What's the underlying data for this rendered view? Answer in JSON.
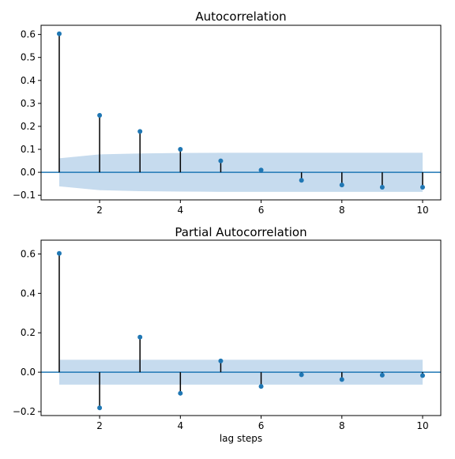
{
  "figure": {
    "xlabel": "lag steps"
  },
  "colors": {
    "marker": "#1f77b4",
    "stem": "#000000",
    "band": "#c6dbee",
    "zero_line": "#1f77b4",
    "axes": "#000000"
  },
  "chart_data": [
    {
      "type": "stem",
      "title": "Autocorrelation",
      "xlabel": "",
      "ylabel": "",
      "xlim": [
        0.55,
        10.45
      ],
      "ylim": [
        -0.12,
        0.64
      ],
      "xticks": [
        2,
        4,
        6,
        8,
        10
      ],
      "xtick_labels": [
        "2",
        "4",
        "6",
        "8",
        "10"
      ],
      "yticks": [
        -0.1,
        0.0,
        0.1,
        0.2,
        0.3,
        0.4,
        0.5,
        0.6
      ],
      "ytick_labels": [
        "−0.1",
        "0.0",
        "0.1",
        "0.2",
        "0.3",
        "0.4",
        "0.5",
        "0.6"
      ],
      "lags": [
        1,
        2,
        3,
        4,
        5,
        6,
        7,
        8,
        9,
        10
      ],
      "values": [
        0.603,
        0.248,
        0.178,
        0.1,
        0.05,
        0.01,
        -0.035,
        -0.055,
        -0.065,
        -0.065
      ],
      "confidence_band": {
        "lags": [
          1,
          2,
          3,
          4,
          5,
          6,
          7,
          8,
          9,
          10
        ],
        "upper": [
          0.061,
          0.078,
          0.082,
          0.084,
          0.085,
          0.085,
          0.085,
          0.085,
          0.085,
          0.085
        ],
        "lower": [
          -0.061,
          -0.078,
          -0.082,
          -0.084,
          -0.085,
          -0.085,
          -0.085,
          -0.085,
          -0.085,
          -0.085
        ]
      },
      "grid": false,
      "legend": "none"
    },
    {
      "type": "stem",
      "title": "Partial Autocorrelation",
      "xlabel": "lag steps",
      "ylabel": "",
      "xlim": [
        0.55,
        10.45
      ],
      "ylim": [
        -0.22,
        0.67
      ],
      "xticks": [
        2,
        4,
        6,
        8,
        10
      ],
      "xtick_labels": [
        "2",
        "4",
        "6",
        "8",
        "10"
      ],
      "yticks": [
        -0.2,
        0.0,
        0.2,
        0.4,
        0.6
      ],
      "ytick_labels": [
        "−0.2",
        "0.0",
        "0.2",
        "0.4",
        "0.6"
      ],
      "lags": [
        1,
        2,
        3,
        4,
        5,
        6,
        7,
        8,
        9,
        10
      ],
      "values": [
        0.603,
        -0.181,
        0.178,
        -0.107,
        0.057,
        -0.072,
        -0.013,
        -0.037,
        -0.015,
        -0.017
      ],
      "confidence_band": {
        "lags": [
          1,
          10
        ],
        "upper": [
          0.063,
          0.063
        ],
        "lower": [
          -0.063,
          -0.063
        ]
      },
      "grid": false,
      "legend": "none"
    }
  ]
}
